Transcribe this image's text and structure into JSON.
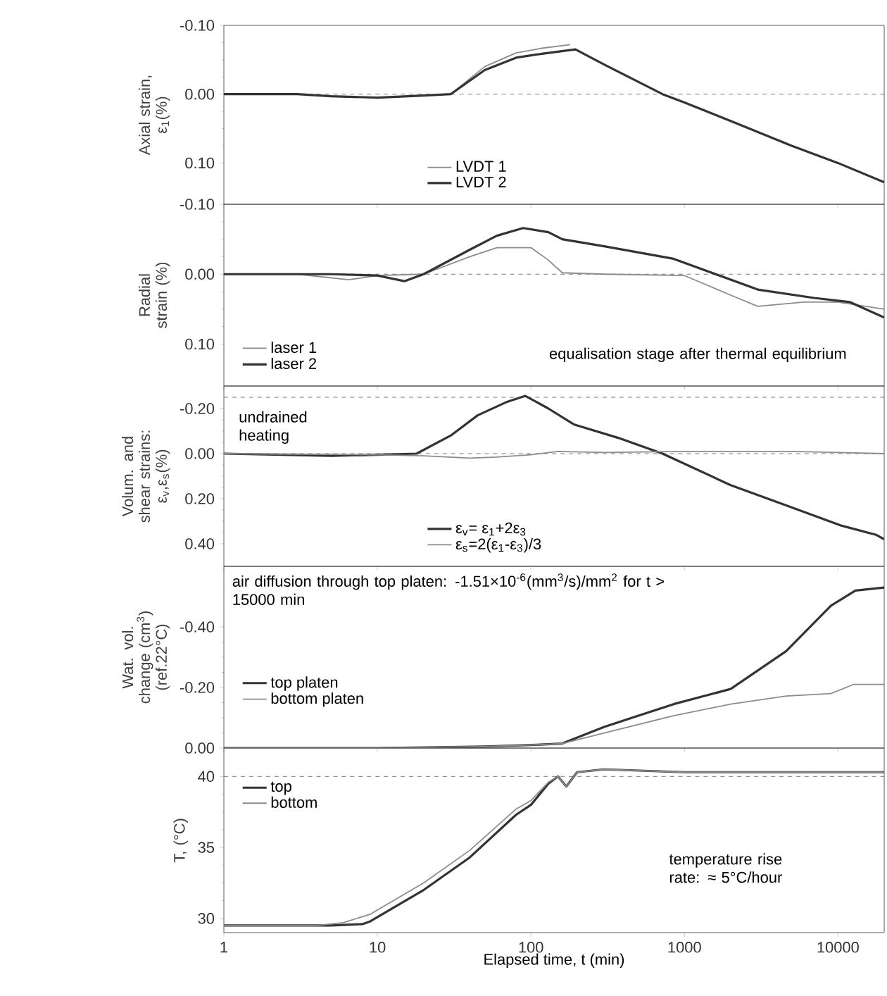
{
  "chart_data": [
    {
      "type": "line",
      "ylabel": "Axial strain, ε$_{1}$(%)",
      "xlim": [
        1,
        20000
      ],
      "xticks": [
        1,
        10,
        100,
        1000,
        10000
      ],
      "ylim": [
        0.16,
        -0.1
      ],
      "yticks": [
        {
          "value": -0.1,
          "label": "-0.10"
        },
        {
          "value": 0,
          "label": "0.00"
        },
        {
          "value": 0.1,
          "label": "0.10"
        }
      ],
      "log": "x",
      "tick_labels": "y",
      "legend": "bottom",
      "ref_lines": [
        {
          "axis": "y",
          "value": 0,
          "line_style": "dashed",
          "color": "#555555"
        }
      ],
      "series": [
        {
          "name": "LVDT 1",
          "color": "#8c8c8c",
          "x": [
            30,
            50,
            80,
            120,
            180
          ],
          "values": [
            0,
            -0.04,
            -0.06,
            -0.067,
            -0.072
          ]
        },
        {
          "name": "LVDT 2",
          "color": "#333333",
          "x": [
            1,
            3,
            5,
            10,
            20,
            30,
            50,
            80,
            120,
            195,
            300,
            500,
            720,
            1000,
            2000,
            5000,
            10000,
            20000
          ],
          "values": [
            0,
            0,
            0.003,
            0.005,
            0.002,
            0,
            -0.035,
            -0.053,
            -0.059,
            -0.065,
            -0.043,
            -0.018,
            0,
            0.012,
            0.039,
            0.075,
            0.1,
            0.128
          ]
        }
      ]
    },
    {
      "type": "line",
      "ylabel": "Radial strain (%)",
      "xlim": [
        1,
        20000
      ],
      "xticks": [
        1,
        10,
        100,
        1000,
        10000
      ],
      "ylim": [
        0.16,
        -0.1
      ],
      "yticks": [
        {
          "value": -0.1,
          "label": "-0.10"
        },
        {
          "value": 0,
          "label": "0.00"
        },
        {
          "value": 0.1,
          "label": "0.10"
        }
      ],
      "log": "x",
      "tick_labels": "y",
      "legend": "bottom left",
      "annotations": [
        "equalisation stage after thermal equilibrium"
      ],
      "ref_lines": [
        {
          "axis": "y",
          "value": 0,
          "line_style": "dashed",
          "color": "#555555"
        }
      ],
      "series": [
        {
          "name": "laser 1",
          "color": "#8c8c8c",
          "x": [
            1,
            3,
            6.5,
            10,
            20,
            40,
            60,
            100,
            130,
            160,
            300,
            1000,
            2000,
            3000,
            6000,
            10000,
            20000
          ],
          "values": [
            0,
            0,
            0.008,
            0.002,
            0,
            -0.025,
            -0.038,
            -0.038,
            -0.02,
            -0.002,
            0,
            0.002,
            0.03,
            0.046,
            0.04,
            0.04,
            0.05
          ]
        },
        {
          "name": "laser 2",
          "color": "#333333",
          "x": [
            1,
            5,
            10,
            15,
            20,
            40,
            60,
            89,
            130,
            160,
            300,
            850,
            3000,
            7000,
            12000,
            20000
          ],
          "values": [
            0,
            0,
            0.002,
            0.01,
            0,
            -0.035,
            -0.055,
            -0.066,
            -0.06,
            -0.05,
            -0.04,
            -0.022,
            0.022,
            0.034,
            0.04,
            0.062
          ]
        }
      ]
    },
    {
      "type": "line",
      "ylabel": "Volum. and shear strains: ε$_{v}$,ε$_{s}$(%)",
      "xlim": [
        1,
        20000
      ],
      "xticks": [
        1,
        10,
        100,
        1000,
        10000
      ],
      "ylim": [
        0.5,
        -0.3
      ],
      "yticks": [
        {
          "value": -0.2,
          "label": "-0.20"
        },
        {
          "value": 0,
          "label": "0.00"
        },
        {
          "value": 0.2,
          "label": "0.20"
        },
        {
          "value": 0.4,
          "label": "0.40"
        }
      ],
      "log": "x",
      "tick_labels": "y",
      "legend": "bottom",
      "annotations": [
        "undrained heating"
      ],
      "ref_lines": [
        {
          "axis": "y",
          "value": -0.25,
          "line_style": "dashed",
          "color": "#555555"
        },
        {
          "axis": "y",
          "value": 0,
          "line_style": "dashed",
          "color": "#555555"
        }
      ],
      "series": [
        {
          "name": "ε$_{v}$= ε$_{1}$+2ε$_{3}$",
          "color": "#333333",
          "x": [
            1,
            5,
            10,
            18,
            30,
            45,
            70,
            92,
            130,
            190,
            370,
            720,
            2000,
            4600,
            10600,
            17700,
            20000
          ],
          "values": [
            0,
            0.01,
            0.005,
            0,
            -0.08,
            -0.17,
            -0.23,
            -0.256,
            -0.2,
            -0.13,
            -0.07,
            0,
            0.14,
            0.23,
            0.32,
            0.36,
            0.38
          ]
        },
        {
          "name": "ε$_{s}$=2(ε$_{1}$-ε$_{3}$)/3",
          "color": "#8c8c8c",
          "x": [
            1,
            10,
            20,
            40,
            60,
            100,
            150,
            300,
            1000,
            5000,
            10000,
            20000
          ],
          "values": [
            0,
            0.005,
            0.01,
            0.02,
            0.015,
            0.005,
            -0.01,
            -0.005,
            -0.01,
            -0.01,
            -0.005,
            0
          ]
        }
      ]
    },
    {
      "type": "line",
      "ylabel": "Wat. vol. change (cm$^{3}$) (ref.22°C)",
      "xlim": [
        1,
        20000
      ],
      "xticks": [
        1,
        10,
        100,
        1000,
        10000
      ],
      "ylim": [
        0,
        -0.6
      ],
      "yticks": [
        {
          "value": -0.4,
          "label": "-0.40"
        },
        {
          "value": -0.2,
          "label": "-0.20"
        },
        {
          "value": 0,
          "label": "0.00"
        }
      ],
      "log": "x",
      "tick_labels": "y",
      "legend": "left",
      "annotations": [
        "air diffusion through top platen: -1.51×10$^{-6}$(mm$^{3}$/s)/mm$^{2}$ for t > 15000 min"
      ],
      "series": [
        {
          "name": "top platen",
          "color": "#333333",
          "x": [
            1,
            10,
            50,
            100,
            160,
            300,
            850,
            2000,
            4600,
            9000,
            13000,
            20000
          ],
          "values": [
            0,
            0,
            -0.005,
            -0.01,
            -0.015,
            -0.07,
            -0.145,
            -0.195,
            -0.32,
            -0.47,
            -0.52,
            -0.53
          ]
        },
        {
          "name": "bottom platen",
          "color": "#8c8c8c",
          "x": [
            1,
            10,
            50,
            100,
            160,
            300,
            850,
            2000,
            4600,
            9000,
            12600,
            20000
          ],
          "values": [
            0,
            0,
            -0.005,
            -0.01,
            -0.015,
            -0.05,
            -0.107,
            -0.145,
            -0.172,
            -0.18,
            -0.21,
            -0.21
          ]
        }
      ]
    },
    {
      "type": "line",
      "ylabel": "T, (°C)",
      "xlabel": "Elapsed time, t (min)",
      "xlim": [
        1,
        20000
      ],
      "xticks": [
        1,
        10,
        100,
        1000,
        10000
      ],
      "ylim": [
        29,
        42
      ],
      "yticks": [
        30,
        35,
        40
      ],
      "log": "x",
      "legend": "top left",
      "annotations": [
        "temperature rise rate: ≈ 5°C/hour"
      ],
      "ref_lines": [
        {
          "axis": "y",
          "value": 40,
          "line_style": "dashed",
          "color": "#555555"
        }
      ],
      "series": [
        {
          "name": "top",
          "color": "#333333",
          "x": [
            1,
            5,
            8,
            9,
            20,
            40,
            80,
            100,
            130,
            150,
            170,
            200,
            300,
            1000,
            20000
          ],
          "values": [
            29.5,
            29.5,
            29.6,
            29.8,
            32.0,
            34.3,
            37.3,
            38.0,
            39.5,
            40.0,
            39.3,
            40.3,
            40.5,
            40.3,
            40.3
          ]
        },
        {
          "name": "bottom",
          "color": "#8c8c8c",
          "x": [
            1,
            4,
            6,
            9,
            20,
            40,
            80,
            100,
            130,
            150,
            170,
            200,
            300,
            1000,
            20000
          ],
          "values": [
            29.5,
            29.5,
            29.7,
            30.3,
            32.5,
            34.8,
            37.7,
            38.3,
            39.6,
            40.0,
            39.3,
            40.3,
            40.5,
            40.3,
            40.3
          ]
        }
      ]
    }
  ]
}
